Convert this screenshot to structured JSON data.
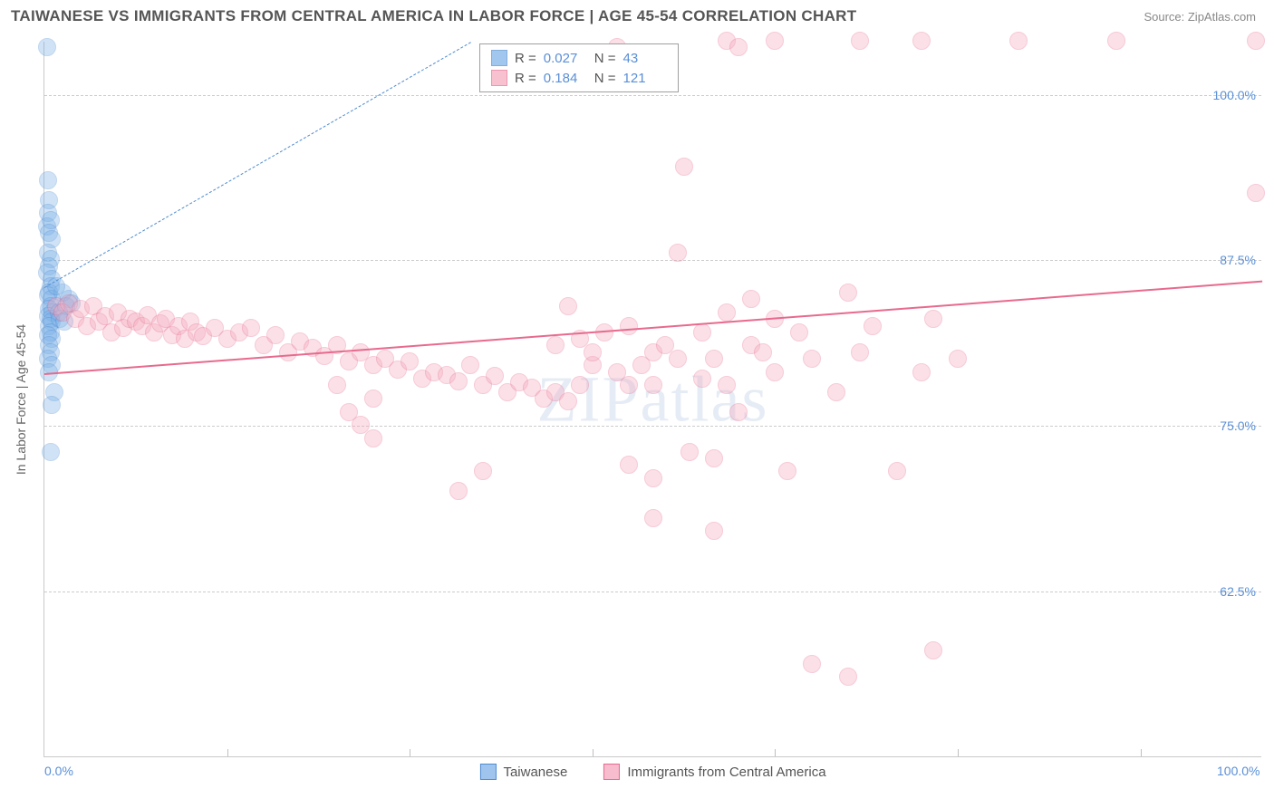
{
  "title": "TAIWANESE VS IMMIGRANTS FROM CENTRAL AMERICA IN LABOR FORCE | AGE 45-54 CORRELATION CHART",
  "source": "Source: ZipAtlas.com",
  "ylabel": "In Labor Force | Age 45-54",
  "watermark": "ZIPatlas",
  "chart": {
    "type": "scatter",
    "xlim": [
      0,
      100
    ],
    "ylim": [
      50,
      104
    ],
    "ytick_labels": [
      "62.5%",
      "75.0%",
      "87.5%",
      "100.0%"
    ],
    "ytick_values": [
      62.5,
      75.0,
      87.5,
      100.0
    ],
    "xtick_labels": [
      "0.0%",
      "100.0%"
    ],
    "xtick_values": [
      0,
      100
    ],
    "xtick_marks": [
      15,
      30,
      45,
      60,
      75,
      90
    ],
    "grid_color": "#cccccc",
    "background_color": "#ffffff",
    "marker_radius": 10,
    "marker_opacity": 0.35,
    "series": [
      {
        "name": "Taiwanese",
        "color": "#7ab0e8",
        "stroke": "#4f8bd0",
        "R": "0.027",
        "N": "43",
        "trend": {
          "x1": 0,
          "y1": 85.5,
          "x2": 35,
          "y2": 104,
          "dashed": true,
          "width": 1.5
        },
        "points": [
          [
            0.2,
            103.5
          ],
          [
            0.3,
            93.5
          ],
          [
            0.4,
            92
          ],
          [
            0.3,
            91
          ],
          [
            0.2,
            90
          ],
          [
            0.5,
            90.5
          ],
          [
            0.4,
            89.5
          ],
          [
            0.6,
            89
          ],
          [
            0.3,
            88
          ],
          [
            0.5,
            87.5
          ],
          [
            0.4,
            87
          ],
          [
            0.2,
            86.5
          ],
          [
            0.6,
            86
          ],
          [
            0.5,
            85.5
          ],
          [
            0.4,
            85
          ],
          [
            0.3,
            84.8
          ],
          [
            0.6,
            84.5
          ],
          [
            0.5,
            84
          ],
          [
            0.4,
            83.8
          ],
          [
            0.7,
            83.5
          ],
          [
            0.3,
            83.2
          ],
          [
            0.5,
            83
          ],
          [
            0.6,
            82.8
          ],
          [
            0.4,
            82.5
          ],
          [
            0.5,
            82
          ],
          [
            0.3,
            81.8
          ],
          [
            0.6,
            81.5
          ],
          [
            0.4,
            81
          ],
          [
            0.5,
            80.5
          ],
          [
            0.3,
            80
          ],
          [
            0.6,
            79.5
          ],
          [
            0.4,
            79
          ],
          [
            0.8,
            77.5
          ],
          [
            0.6,
            76.5
          ],
          [
            0.5,
            73
          ],
          [
            2,
            84.5
          ],
          [
            1.5,
            85
          ],
          [
            1.2,
            83.5
          ],
          [
            1.8,
            84
          ],
          [
            1,
            85.5
          ],
          [
            1.3,
            83
          ],
          [
            2.2,
            84.2
          ],
          [
            1.6,
            82.8
          ]
        ]
      },
      {
        "name": "Immigrants from Central America",
        "color": "#f5a8bd",
        "stroke": "#e86a8e",
        "R": "0.184",
        "N": "121",
        "trend": {
          "x1": 0,
          "y1": 79,
          "x2": 100,
          "y2": 86,
          "dashed": false,
          "width": 2
        },
        "points": [
          [
            1,
            84
          ],
          [
            1.5,
            83.5
          ],
          [
            2,
            84.2
          ],
          [
            2.5,
            83
          ],
          [
            3,
            83.8
          ],
          [
            3.5,
            82.5
          ],
          [
            4,
            84
          ],
          [
            4.5,
            82.8
          ],
          [
            5,
            83.2
          ],
          [
            5.5,
            82
          ],
          [
            6,
            83.5
          ],
          [
            6.5,
            82.3
          ],
          [
            7,
            83
          ],
          [
            7.5,
            82.8
          ],
          [
            8,
            82.5
          ],
          [
            8.5,
            83.3
          ],
          [
            9,
            82
          ],
          [
            9.5,
            82.7
          ],
          [
            10,
            83
          ],
          [
            10.5,
            81.8
          ],
          [
            11,
            82.5
          ],
          [
            11.5,
            81.5
          ],
          [
            12,
            82.8
          ],
          [
            12.5,
            82
          ],
          [
            13,
            81.7
          ],
          [
            14,
            82.3
          ],
          [
            15,
            81.5
          ],
          [
            16,
            82
          ],
          [
            17,
            82.3
          ],
          [
            18,
            81
          ],
          [
            19,
            81.8
          ],
          [
            20,
            80.5
          ],
          [
            21,
            81.3
          ],
          [
            22,
            80.8
          ],
          [
            23,
            80.2
          ],
          [
            24,
            81
          ],
          [
            25,
            79.8
          ],
          [
            26,
            80.5
          ],
          [
            27,
            79.5
          ],
          [
            28,
            80
          ],
          [
            27,
            77
          ],
          [
            25,
            76
          ],
          [
            26,
            75
          ],
          [
            27,
            74
          ],
          [
            24,
            78
          ],
          [
            29,
            79.2
          ],
          [
            30,
            79.8
          ],
          [
            31,
            78.5
          ],
          [
            32,
            79
          ],
          [
            33,
            78.8
          ],
          [
            34,
            78.3
          ],
          [
            35,
            79.5
          ],
          [
            36,
            78
          ],
          [
            37,
            78.7
          ],
          [
            38,
            77.5
          ],
          [
            39,
            78.2
          ],
          [
            40,
            77.8
          ],
          [
            36,
            71.5
          ],
          [
            34,
            70
          ],
          [
            41,
            77
          ],
          [
            42,
            77.5
          ],
          [
            43,
            76.8
          ],
          [
            44,
            78
          ],
          [
            45,
            79.5
          ],
          [
            42,
            81
          ],
          [
            44,
            81.5
          ],
          [
            43,
            84
          ],
          [
            45,
            80.5
          ],
          [
            46,
            82
          ],
          [
            47,
            79
          ],
          [
            47,
            103.5
          ],
          [
            48,
            72
          ],
          [
            48,
            78
          ],
          [
            48,
            82.5
          ],
          [
            49,
            79.5
          ],
          [
            50,
            80.5
          ],
          [
            50,
            78
          ],
          [
            50,
            71
          ],
          [
            50,
            68
          ],
          [
            51,
            81
          ],
          [
            52,
            80
          ],
          [
            52,
            88
          ],
          [
            52.5,
            94.5
          ],
          [
            53,
            73
          ],
          [
            54,
            78.5
          ],
          [
            54,
            82
          ],
          [
            55,
            80
          ],
          [
            55,
            72.5
          ],
          [
            55,
            67
          ],
          [
            56,
            104
          ],
          [
            56,
            83.5
          ],
          [
            56,
            78
          ],
          [
            57,
            76
          ],
          [
            57,
            103.5
          ],
          [
            58,
            81
          ],
          [
            58,
            84.5
          ],
          [
            59,
            80.5
          ],
          [
            60,
            79
          ],
          [
            60,
            83
          ],
          [
            60,
            104
          ],
          [
            61,
            71.5
          ],
          [
            62,
            82
          ],
          [
            63,
            80
          ],
          [
            63,
            57
          ],
          [
            66,
            56
          ],
          [
            65,
            77.5
          ],
          [
            66,
            85
          ],
          [
            67,
            80.5
          ],
          [
            67,
            104
          ],
          [
            68,
            82.5
          ],
          [
            70,
            71.5
          ],
          [
            72,
            79
          ],
          [
            72,
            104
          ],
          [
            73,
            83
          ],
          [
            73,
            58
          ],
          [
            75,
            80
          ],
          [
            80,
            104
          ],
          [
            88,
            104
          ],
          [
            99.5,
            104
          ],
          [
            99.5,
            92.5
          ]
        ]
      }
    ]
  },
  "legend_bottom": [
    {
      "label": "Taiwanese",
      "fill": "#9fc5ee",
      "stroke": "#4f8bd0"
    },
    {
      "label": "Immigrants from Central America",
      "fill": "#f7bccd",
      "stroke": "#e86a8e"
    }
  ]
}
